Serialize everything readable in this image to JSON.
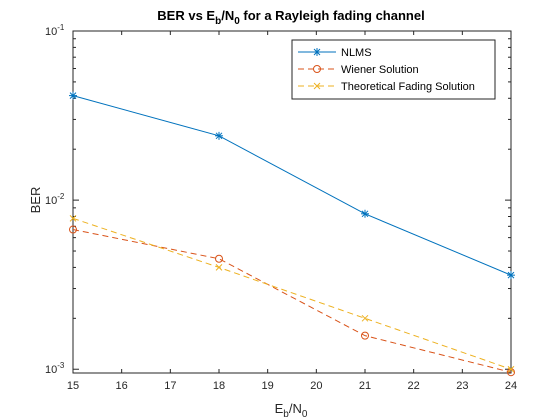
{
  "chart_data": {
    "type": "line",
    "title": {
      "main": "BER vs E",
      "sub1": "b",
      "mid": "/N",
      "sub2": "0",
      "tail": " for a Rayleigh fading channel"
    },
    "xlabel": {
      "main": "E",
      "sub1": "b",
      "mid": "/N",
      "sub2": "0"
    },
    "ylabel": "BER",
    "xlim": [
      15,
      24
    ],
    "ylim": [
      0.00095,
      0.1
    ],
    "yscale": "log",
    "xticks": [
      15,
      16,
      17,
      18,
      19,
      20,
      21,
      22,
      23,
      24
    ],
    "yticks": [
      {
        "value": 0.001,
        "base": "10",
        "exp": "-3"
      },
      {
        "value": 0.01,
        "base": "10",
        "exp": "-2"
      },
      {
        "value": 0.1,
        "base": "10",
        "exp": "-1"
      }
    ],
    "grid": false,
    "legend_position": "top-right",
    "series": [
      {
        "name": "NLMS",
        "color": "#0072BD",
        "style": "solid",
        "marker": "asterisk",
        "x": [
          15,
          18,
          21,
          24
        ],
        "y": [
          0.0415,
          0.024,
          0.0083,
          0.0036
        ]
      },
      {
        "name": "Wiener Solution",
        "color": "#D95319",
        "style": "dashed",
        "marker": "circle",
        "x": [
          15,
          18,
          21,
          24
        ],
        "y": [
          0.0067,
          0.0045,
          0.00158,
          0.00096
        ]
      },
      {
        "name": "Theoretical Fading Solution",
        "color": "#EDB120",
        "style": "dashed",
        "marker": "x",
        "x": [
          15,
          18,
          21,
          24
        ],
        "y": [
          0.0078,
          0.004,
          0.002,
          0.001
        ]
      }
    ]
  }
}
